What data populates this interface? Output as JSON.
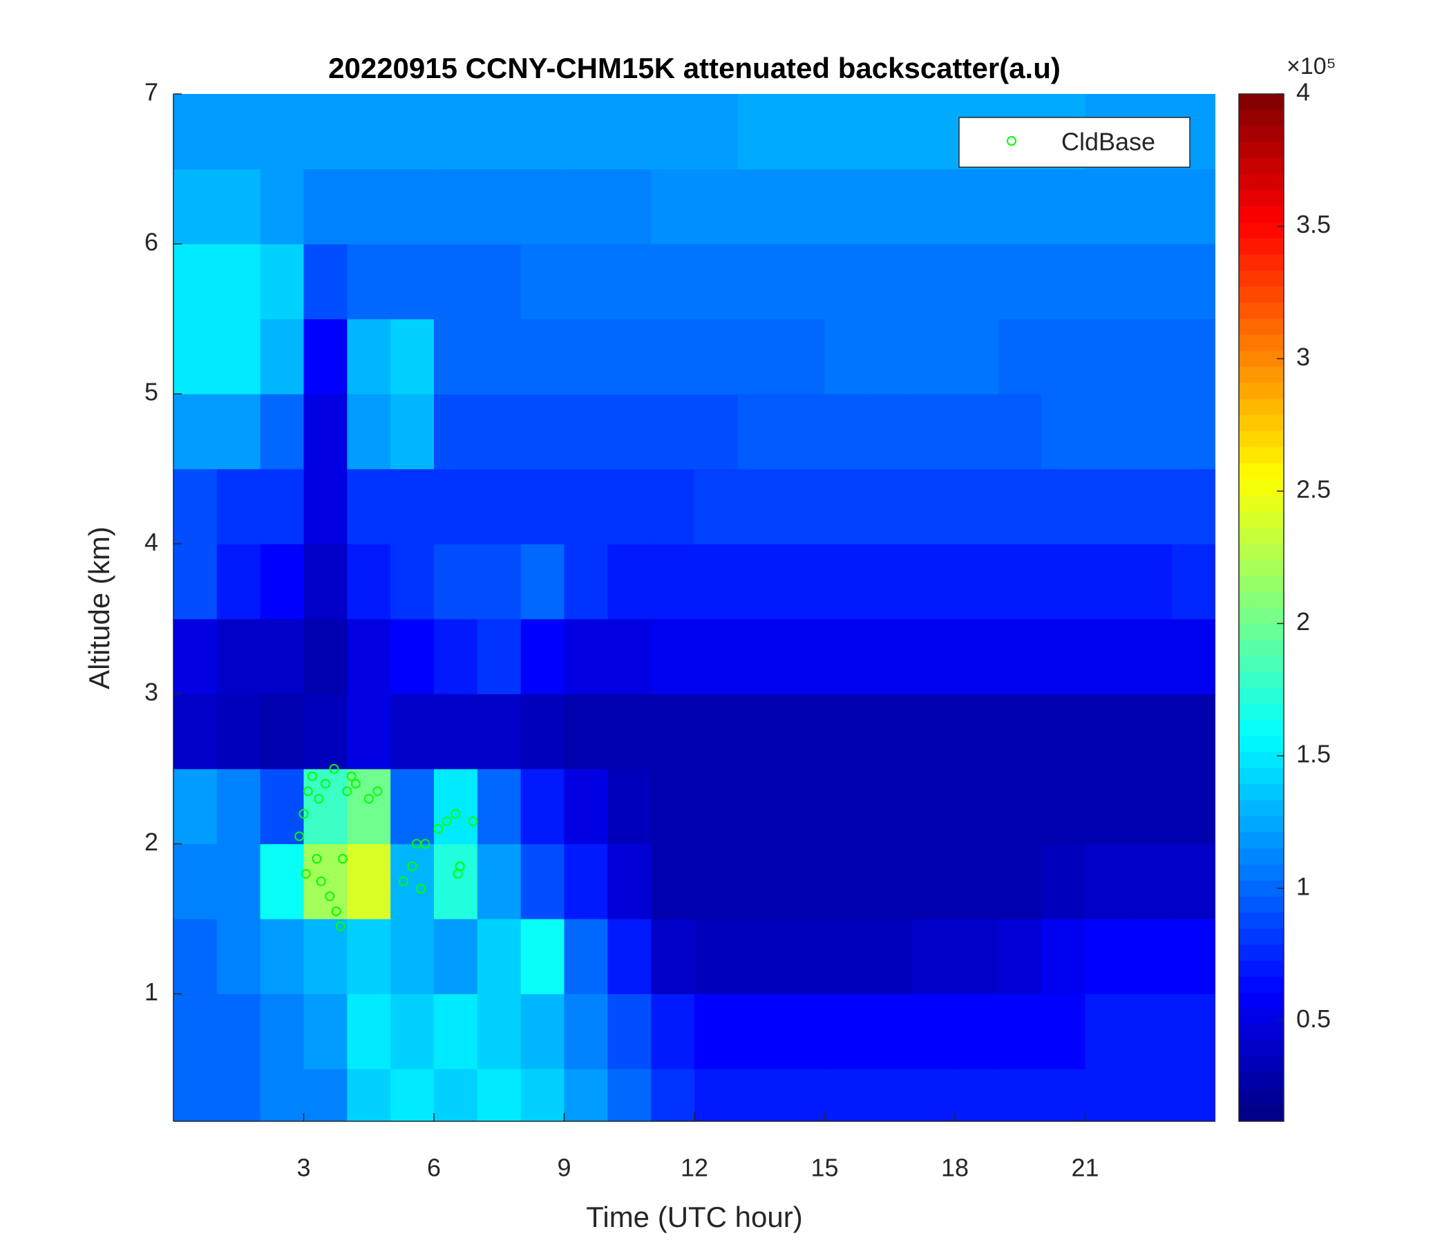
{
  "chart_data": {
    "type": "heatmap",
    "title": "20220915 CCNY-CHM15K attenuated backscatter(a.u)",
    "xlabel": "Time (UTC hour)",
    "ylabel": "Altitude (km)",
    "xlim": [
      0,
      24
    ],
    "ylim": [
      0.15,
      7
    ],
    "xticks": [
      3,
      6,
      9,
      12,
      15,
      18,
      21
    ],
    "yticks": [
      1,
      2,
      3,
      4,
      5,
      6,
      7
    ],
    "colormap": "jet",
    "clim": [
      0.12,
      4
    ],
    "cticks": [
      0.5,
      1,
      1.5,
      2,
      2.5,
      3,
      3.5,
      4
    ],
    "colorbar_multiplier": "×10⁵",
    "x": [
      0.5,
      1.5,
      2.5,
      3.5,
      4.5,
      5.5,
      6.5,
      7.5,
      8.5,
      9.5,
      10.5,
      11.5,
      12.5,
      13.5,
      14.5,
      15.5,
      16.5,
      17.5,
      18.5,
      19.5,
      20.5,
      21.5,
      22.5,
      23.5
    ],
    "y": [
      0.25,
      0.75,
      1.25,
      1.75,
      2.25,
      2.75,
      3.25,
      3.75,
      4.25,
      4.75,
      5.25,
      5.75,
      6.25,
      6.75
    ],
    "z": [
      [
        1.0,
        1.0,
        1.1,
        1.1,
        1.4,
        1.5,
        1.4,
        1.5,
        1.4,
        1.2,
        1.0,
        0.8,
        0.7,
        0.7,
        0.7,
        0.7,
        0.7,
        0.7,
        0.7,
        0.7,
        0.7,
        0.7,
        0.7,
        0.7
      ],
      [
        1.0,
        1.0,
        1.1,
        1.2,
        1.5,
        1.4,
        1.5,
        1.4,
        1.3,
        1.1,
        0.9,
        0.7,
        0.6,
        0.6,
        0.6,
        0.6,
        0.6,
        0.6,
        0.6,
        0.6,
        0.6,
        0.7,
        0.7,
        0.7
      ],
      [
        1.0,
        1.1,
        1.2,
        1.3,
        1.4,
        1.3,
        1.2,
        1.4,
        1.6,
        1.0,
        0.7,
        0.4,
        0.35,
        0.35,
        0.35,
        0.35,
        0.35,
        0.4,
        0.4,
        0.45,
        0.55,
        0.6,
        0.6,
        0.6
      ],
      [
        1.1,
        1.1,
        1.6,
        2.2,
        2.4,
        1.3,
        1.7,
        1.2,
        0.9,
        0.7,
        0.45,
        0.3,
        0.3,
        0.3,
        0.3,
        0.3,
        0.3,
        0.3,
        0.3,
        0.3,
        0.35,
        0.4,
        0.4,
        0.4
      ],
      [
        1.2,
        1.1,
        0.9,
        1.8,
        2.0,
        1.0,
        1.5,
        1.0,
        0.7,
        0.5,
        0.35,
        0.3,
        0.3,
        0.3,
        0.3,
        0.3,
        0.3,
        0.3,
        0.3,
        0.3,
        0.3,
        0.3,
        0.3,
        0.3
      ],
      [
        0.4,
        0.35,
        0.3,
        0.35,
        0.5,
        0.4,
        0.4,
        0.4,
        0.35,
        0.3,
        0.3,
        0.3,
        0.3,
        0.3,
        0.3,
        0.3,
        0.3,
        0.3,
        0.3,
        0.3,
        0.3,
        0.3,
        0.3,
        0.3
      ],
      [
        0.5,
        0.4,
        0.4,
        0.3,
        0.5,
        0.6,
        0.7,
        0.8,
        0.6,
        0.5,
        0.5,
        0.55,
        0.55,
        0.55,
        0.55,
        0.55,
        0.55,
        0.55,
        0.55,
        0.55,
        0.55,
        0.55,
        0.55,
        0.55
      ],
      [
        0.9,
        0.7,
        0.6,
        0.4,
        0.7,
        0.8,
        0.9,
        0.9,
        1.0,
        0.8,
        0.7,
        0.7,
        0.7,
        0.7,
        0.7,
        0.7,
        0.7,
        0.7,
        0.7,
        0.7,
        0.7,
        0.7,
        0.7,
        0.75
      ],
      [
        0.9,
        0.8,
        0.8,
        0.5,
        0.8,
        0.8,
        0.8,
        0.8,
        0.8,
        0.8,
        0.8,
        0.8,
        0.85,
        0.85,
        0.85,
        0.85,
        0.85,
        0.85,
        0.85,
        0.85,
        0.85,
        0.85,
        0.85,
        0.85
      ],
      [
        1.2,
        1.2,
        1.0,
        0.5,
        1.2,
        1.3,
        0.9,
        0.9,
        0.9,
        0.9,
        0.9,
        0.9,
        0.9,
        0.95,
        0.95,
        0.95,
        0.95,
        0.95,
        0.95,
        0.95,
        1.0,
        1.0,
        1.0,
        1.0
      ],
      [
        1.5,
        1.5,
        1.3,
        0.6,
        1.3,
        1.4,
        1.0,
        1.0,
        1.0,
        1.0,
        1.0,
        1.0,
        1.0,
        1.0,
        1.0,
        1.05,
        1.05,
        1.05,
        1.05,
        1.0,
        1.0,
        1.0,
        1.0,
        1.0
      ],
      [
        1.5,
        1.5,
        1.4,
        0.9,
        1.0,
        1.0,
        1.0,
        1.0,
        1.05,
        1.05,
        1.05,
        1.05,
        1.05,
        1.05,
        1.05,
        1.05,
        1.05,
        1.05,
        1.05,
        1.05,
        1.05,
        1.05,
        1.05,
        1.05
      ],
      [
        1.3,
        1.3,
        1.2,
        1.1,
        1.1,
        1.1,
        1.1,
        1.1,
        1.1,
        1.1,
        1.1,
        1.15,
        1.15,
        1.15,
        1.15,
        1.15,
        1.15,
        1.15,
        1.15,
        1.15,
        1.15,
        1.15,
        1.15,
        1.15
      ],
      [
        1.2,
        1.2,
        1.2,
        1.2,
        1.2,
        1.2,
        1.2,
        1.2,
        1.2,
        1.2,
        1.2,
        1.2,
        1.2,
        1.25,
        1.25,
        1.25,
        1.25,
        1.25,
        1.25,
        1.25,
        1.25,
        1.2,
        1.2,
        1.2
      ]
    ],
    "series": [
      {
        "name": "CldBase",
        "type": "scatter",
        "color": "#00ff00",
        "x": [
          2.9,
          3.0,
          3.05,
          3.1,
          3.2,
          3.3,
          3.35,
          3.4,
          3.5,
          3.6,
          3.7,
          3.75,
          3.85,
          3.9,
          4.0,
          4.1,
          4.2,
          4.5,
          4.7,
          5.3,
          5.5,
          5.6,
          5.7,
          5.8,
          6.1,
          6.3,
          6.5,
          6.55,
          6.6,
          6.9
        ],
        "y": [
          2.05,
          2.2,
          1.8,
          2.35,
          2.45,
          1.9,
          2.3,
          1.75,
          2.4,
          1.65,
          2.5,
          1.55,
          1.45,
          1.9,
          2.35,
          2.45,
          2.4,
          2.3,
          2.35,
          1.75,
          1.85,
          2.0,
          1.7,
          2.0,
          2.1,
          2.15,
          2.2,
          1.8,
          1.85,
          2.15
        ]
      }
    ],
    "legend": "northeast"
  }
}
